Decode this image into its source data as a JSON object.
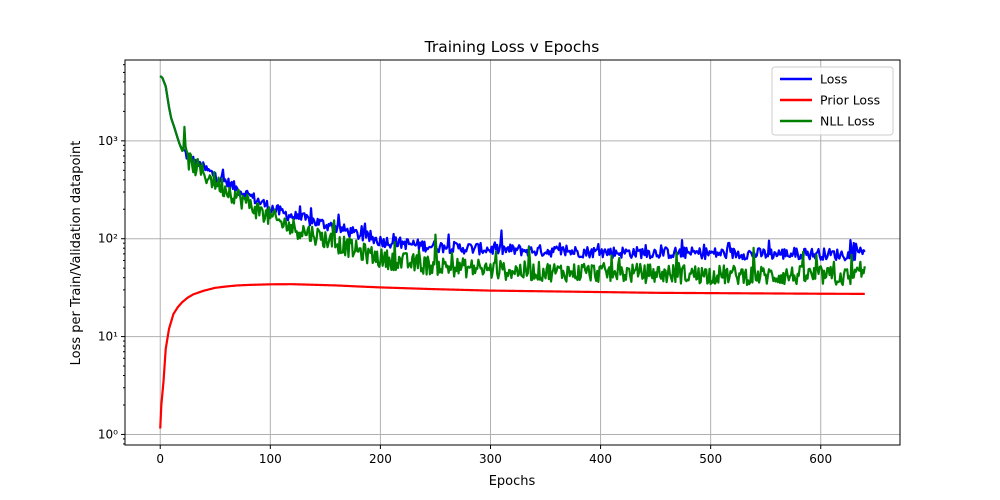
{
  "chart_data": {
    "type": "line",
    "title": "Training Loss v Epochs",
    "xlabel": "Epochs",
    "ylabel": "Loss per Train/Validation datapoint",
    "xlim": [
      -32,
      672
    ],
    "ylim": [
      0.78,
      6700
    ],
    "yscale": "log",
    "grid": true,
    "legend_position": "top-right",
    "x_ticks": [
      0,
      100,
      200,
      300,
      400,
      500,
      600
    ],
    "x_tick_labels": [
      "0",
      "100",
      "200",
      "300",
      "400",
      "500",
      "600"
    ],
    "y_ticks": [
      1,
      10,
      100,
      1000
    ],
    "y_tick_labels": [
      "10⁰",
      "10¹",
      "10²",
      "10³"
    ],
    "series": [
      {
        "name": "Loss",
        "color": "#0000ff",
        "points": [
          [
            0,
            4600
          ],
          [
            2,
            4400
          ],
          [
            5,
            3600
          ],
          [
            8,
            2200
          ],
          [
            10,
            1700
          ],
          [
            13,
            1350
          ],
          [
            16,
            1050
          ],
          [
            18,
            900
          ],
          [
            20,
            820
          ],
          [
            25,
            700
          ],
          [
            30,
            620
          ],
          [
            40,
            520
          ],
          [
            50,
            440
          ],
          [
            60,
            380
          ],
          [
            70,
            320
          ],
          [
            80,
            280
          ],
          [
            90,
            240
          ],
          [
            100,
            210
          ],
          [
            110,
            185
          ],
          [
            120,
            170
          ],
          [
            140,
            150
          ],
          [
            160,
            130
          ],
          [
            180,
            110
          ],
          [
            200,
            95
          ],
          [
            220,
            90
          ],
          [
            240,
            85
          ],
          [
            260,
            82
          ],
          [
            280,
            80
          ],
          [
            300,
            78
          ],
          [
            350,
            75
          ],
          [
            400,
            73
          ],
          [
            450,
            72
          ],
          [
            500,
            71
          ],
          [
            550,
            70
          ],
          [
            600,
            70
          ],
          [
            630,
            68
          ],
          [
            640,
            80
          ]
        ],
        "noise": 0.12
      },
      {
        "name": "Prior Loss",
        "color": "#ff0000",
        "points": [
          [
            0,
            1.15
          ],
          [
            1,
            2.0
          ],
          [
            3,
            3.5
          ],
          [
            5,
            7.5
          ],
          [
            8,
            12
          ],
          [
            12,
            17
          ],
          [
            16,
            20
          ],
          [
            20,
            22.5
          ],
          [
            25,
            25
          ],
          [
            30,
            27
          ],
          [
            40,
            29.5
          ],
          [
            50,
            31.5
          ],
          [
            60,
            32.5
          ],
          [
            70,
            33.3
          ],
          [
            80,
            33.7
          ],
          [
            100,
            34.2
          ],
          [
            120,
            34.3
          ],
          [
            140,
            33.8
          ],
          [
            160,
            33.3
          ],
          [
            180,
            32.5
          ],
          [
            200,
            31.8
          ],
          [
            250,
            30.5
          ],
          [
            300,
            29.5
          ],
          [
            350,
            29
          ],
          [
            400,
            28.5
          ],
          [
            450,
            28
          ],
          [
            500,
            27.8
          ],
          [
            550,
            27.6
          ],
          [
            600,
            27.4
          ],
          [
            640,
            27.3
          ]
        ],
        "noise": 0
      },
      {
        "name": "NLL Loss",
        "color": "#008000",
        "points": [
          [
            0,
            4600
          ],
          [
            2,
            4400
          ],
          [
            5,
            3600
          ],
          [
            8,
            2200
          ],
          [
            10,
            1700
          ],
          [
            13,
            1350
          ],
          [
            16,
            1050
          ],
          [
            18,
            900
          ],
          [
            20,
            790
          ],
          [
            25,
            650
          ],
          [
            30,
            560
          ],
          [
            40,
            460
          ],
          [
            50,
            380
          ],
          [
            60,
            320
          ],
          [
            70,
            270
          ],
          [
            80,
            230
          ],
          [
            90,
            190
          ],
          [
            100,
            165
          ],
          [
            110,
            145
          ],
          [
            120,
            130
          ],
          [
            140,
            110
          ],
          [
            160,
            90
          ],
          [
            180,
            75
          ],
          [
            200,
            63
          ],
          [
            220,
            58
          ],
          [
            240,
            54
          ],
          [
            260,
            52
          ],
          [
            280,
            50
          ],
          [
            300,
            48
          ],
          [
            350,
            46
          ],
          [
            400,
            45
          ],
          [
            450,
            44
          ],
          [
            500,
            43
          ],
          [
            550,
            42
          ],
          [
            600,
            42
          ],
          [
            630,
            40
          ],
          [
            640,
            55
          ]
        ],
        "noise": 0.2
      }
    ]
  }
}
